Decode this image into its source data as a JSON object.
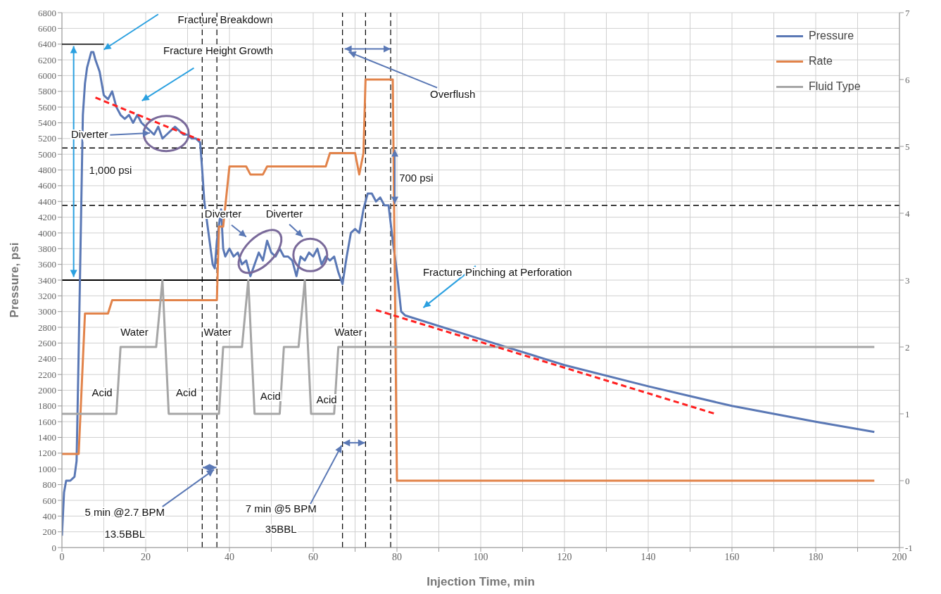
{
  "chart_data": {
    "type": "line",
    "xlabel": "Injection Time, min",
    "ylabel": "Pressure, psi",
    "xlim": [
      0,
      200
    ],
    "xticks": [
      0,
      {
        "value": 10,
        "label": null
      },
      20,
      {
        "value": 30,
        "label": null
      },
      40,
      {
        "value": 50,
        "label": null
      },
      60,
      {
        "value": 70,
        "label": null
      },
      80,
      {
        "value": 90,
        "label": null
      },
      100,
      {
        "value": 110,
        "label": null
      },
      120,
      {
        "value": 130,
        "label": null
      },
      140,
      {
        "value": 150,
        "label": null
      },
      160,
      {
        "value": 170,
        "label": null
      },
      180,
      {
        "value": 190,
        "label": null
      },
      200
    ],
    "ylim": [
      0,
      6800
    ],
    "yticks": [
      0,
      200,
      400,
      600,
      800,
      1000,
      1200,
      1400,
      1600,
      1800,
      2000,
      2200,
      2400,
      2600,
      2800,
      3000,
      3200,
      3400,
      3600,
      3800,
      4000,
      4200,
      4400,
      4600,
      4800,
      5000,
      5200,
      5400,
      5600,
      5800,
      6000,
      6200,
      6400,
      6600,
      6800
    ],
    "y2lim": [
      -1,
      7
    ],
    "y2ticks": [
      -1,
      0,
      1,
      2,
      3,
      4,
      5,
      6,
      7
    ],
    "grid": true,
    "legend": "top right",
    "marker": "none",
    "series": [
      {
        "name": "Pressure",
        "color": "#5a78b5",
        "x": [
          0,
          0.5,
          1,
          2,
          3,
          3.5,
          4,
          4.5,
          5,
          5.5,
          6,
          7,
          7.5,
          8,
          9,
          10,
          11,
          12,
          13,
          14,
          15,
          16,
          17,
          18,
          19,
          20,
          21,
          22,
          23,
          24,
          25,
          26,
          27,
          28,
          29,
          30,
          31,
          32,
          33,
          33.5,
          34,
          35,
          36,
          36.5,
          37,
          38,
          38.5,
          39,
          40,
          41,
          42,
          43,
          44,
          45,
          46,
          47,
          48,
          49,
          50,
          51,
          52,
          53,
          54,
          55,
          56,
          57,
          58,
          59,
          60,
          61,
          62,
          63,
          64,
          65,
          66,
          67,
          68,
          69,
          70,
          71,
          72,
          73,
          74,
          75,
          76,
          77,
          78,
          79,
          80,
          81,
          82,
          100,
          120,
          140,
          160,
          180,
          194
        ],
        "values": [
          150,
          700,
          850,
          850,
          900,
          1100,
          2500,
          4000,
          5500,
          5900,
          6100,
          6300,
          6300,
          6200,
          6050,
          5750,
          5700,
          5800,
          5600,
          5500,
          5450,
          5500,
          5400,
          5500,
          5400,
          5350,
          5300,
          5250,
          5350,
          5200,
          5250,
          5300,
          5350,
          5300,
          5250,
          5250,
          5200,
          5200,
          5150,
          4800,
          4400,
          4000,
          3600,
          3550,
          3900,
          4300,
          3800,
          3700,
          3800,
          3700,
          3750,
          3600,
          3650,
          3450,
          3600,
          3750,
          3650,
          3900,
          3750,
          3700,
          3800,
          3700,
          3700,
          3650,
          3450,
          3700,
          3650,
          3750,
          3700,
          3800,
          3600,
          3700,
          3650,
          3700,
          3500,
          3350,
          3700,
          4000,
          4050,
          4000,
          4300,
          4500,
          4500,
          4400,
          4450,
          4350,
          4350,
          3900,
          3500,
          3000,
          2950,
          2650,
          2320,
          2050,
          1800,
          1600,
          1470
        ]
      },
      {
        "name": "Rate",
        "color": "#e2834a",
        "axis": "y2",
        "x": [
          0,
          4,
          5.5,
          11,
          12,
          36.5,
          37,
          37.5,
          38.5,
          40,
          44,
          45,
          48,
          49,
          63,
          64,
          70,
          71,
          72,
          72.5,
          79,
          80,
          194
        ],
        "values": [
          0.4,
          0.4,
          2.5,
          2.5,
          2.7,
          2.7,
          2.7,
          3.8,
          3.8,
          4.7,
          4.7,
          4.58,
          4.58,
          4.7,
          4.7,
          4.9,
          4.9,
          4.58,
          4.9,
          6,
          6,
          0,
          0
        ]
      },
      {
        "name": "Fluid Type",
        "color": "#a6a6a6",
        "axis": "y2",
        "x": [
          0,
          13,
          14,
          22.5,
          24,
          25.5,
          37.5,
          38.5,
          43,
          44.5,
          46,
          52,
          53,
          56.5,
          58,
          59.5,
          65,
          66,
          194
        ],
        "values": [
          1,
          1,
          2,
          2,
          3,
          1,
          1,
          2,
          2,
          3,
          1,
          1,
          2,
          2,
          3,
          1,
          1,
          2,
          2
        ]
      },
      {
        "color": "#ff2020",
        "line_style": "dashed",
        "x": [
          8,
          33
        ],
        "values": [
          5720,
          5180
        ]
      },
      {
        "color": "#ff2020",
        "line_style": "dashed",
        "x": [
          75,
          156
        ],
        "values": [
          3020,
          1700
        ]
      }
    ],
    "ref_lines": [
      {
        "axis": "x",
        "value": 33.5,
        "color": "#000000",
        "line_style": "dashed"
      },
      {
        "axis": "x",
        "value": 37,
        "color": "#000000",
        "line_style": "dashed"
      },
      {
        "axis": "x",
        "value": 67,
        "color": "#000000",
        "line_style": "dashed"
      },
      {
        "axis": "x",
        "value": 72.5,
        "color": "#000000",
        "line_style": "dashed"
      },
      {
        "axis": "x",
        "value": 78.5,
        "color": "#000000",
        "line_style": "dashed"
      },
      {
        "axis": "y",
        "value": 5080,
        "color": "#000000",
        "line_style": "dashed"
      },
      {
        "axis": "y",
        "value": 4350,
        "color": "#000000",
        "line_style": "dashed"
      },
      {
        "axis": "y",
        "value": 3400,
        "color": "#000000",
        "line_style": "solid"
      }
    ],
    "annotations": [
      "Fracture Breakdown",
      "Fracture Height Growth",
      "Diverter",
      "1,000 psi",
      "Diverter",
      "Diverter",
      "700 psi",
      "Overflush",
      "Fracture Pinching at Perforation",
      "Water",
      "Water",
      "Water",
      "Acid",
      "Acid",
      "Acid",
      "Acid",
      {
        "text": "5 min @2.7 BPM",
        "x": 36.3,
        "y": 990
      },
      "13.5BBL",
      {
        "text": "7 min @5 BPM",
        "x": 66.8,
        "y": 1300
      },
      "35BBL"
    ]
  }
}
